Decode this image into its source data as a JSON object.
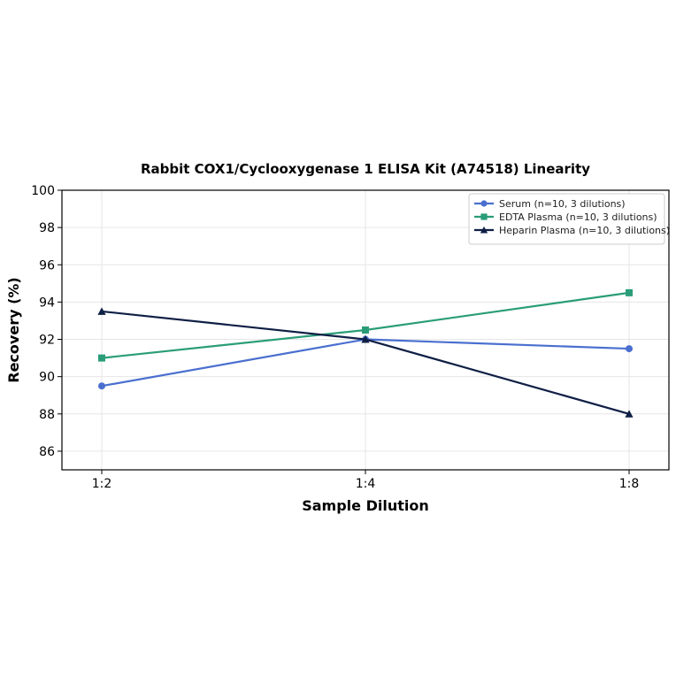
{
  "chart_data": {
    "type": "line",
    "title": "Rabbit COX1/Cyclooxygenase 1 ELISA Kit (A74518) Linearity",
    "xlabel": "Sample Dilution",
    "ylabel": "Recovery (%)",
    "categories": [
      "1:2",
      "1:4",
      "1:8"
    ],
    "ylim": [
      85,
      100
    ],
    "yticks": [
      86,
      88,
      90,
      92,
      94,
      96,
      98,
      100
    ],
    "grid": true,
    "legend_position": "top-right",
    "series": [
      {
        "name": "Serum (n=10, 3 dilutions)",
        "values": [
          89.5,
          92.0,
          91.5
        ],
        "color": "#4a6fcf",
        "marker": "circle"
      },
      {
        "name": "EDTA Plasma (n=10, 3 dilutions)",
        "values": [
          91.0,
          92.5,
          94.5
        ],
        "color": "#2a9d78",
        "marker": "square"
      },
      {
        "name": "Heparin Plasma (n=10, 3 dilutions)",
        "values": [
          93.5,
          92.0,
          88.0
        ],
        "color": "#0f1f45",
        "marker": "triangle"
      }
    ]
  }
}
